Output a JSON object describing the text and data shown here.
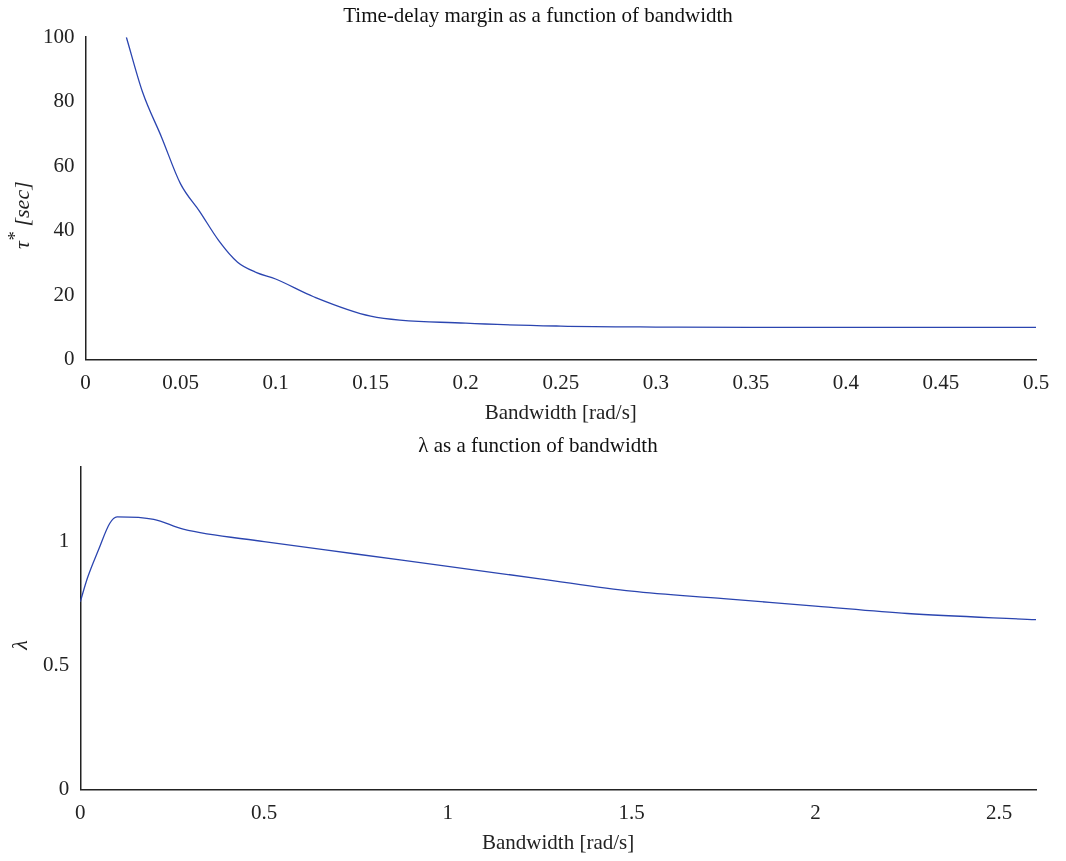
{
  "chart_data": [
    {
      "type": "line",
      "title": "Time-delay margin as a function of bandwidth",
      "xlabel": "Bandwidth [rad/s]",
      "ylabel": "τ$^{*}$ [sec]",
      "xlim": [
        0,
        0.5
      ],
      "xticks": [
        0,
        0.05,
        0.1,
        0.15,
        0.2,
        0.25,
        0.3,
        0.35,
        0.4,
        0.45,
        0.5
      ],
      "ylim": [
        0,
        100
      ],
      "yticks": [
        0,
        20,
        40,
        60,
        80,
        100
      ],
      "grid": false,
      "legend": false,
      "series": [
        {
          "color": "#2b45b0",
          "x": [
            0.0215,
            0.03,
            0.04,
            0.05,
            0.06,
            0.07,
            0.08,
            0.09,
            0.1,
            0.12,
            0.15,
            0.2,
            0.25,
            0.3,
            0.35,
            0.4,
            0.5
          ],
          "values": [
            100,
            83,
            69,
            54.5,
            46,
            37,
            30.2,
            27,
            25,
            19.5,
            13.5,
            11.3,
            10.4,
            10.1,
            10,
            10,
            10
          ]
        }
      ]
    },
    {
      "type": "line",
      "title": "λ as a function of bandwidth",
      "xlabel": "Bandwidth [rad/s]",
      "ylabel": "λ",
      "xlim": [
        0,
        2.6
      ],
      "xticks": [
        0,
        0.5,
        1,
        1.5,
        2,
        2.5
      ],
      "ylim": [
        0,
        1.3
      ],
      "yticks": [
        0,
        0.5,
        1
      ],
      "grid": false,
      "legend": false,
      "series": [
        {
          "color": "#2b45b0",
          "x": [
            0,
            0.02,
            0.05,
            0.08,
            0.1,
            0.2,
            0.28,
            0.5,
            0.75,
            1,
            1.25,
            1.5,
            1.75,
            2,
            2.25,
            2.6
          ],
          "values": [
            0.757,
            0.855,
            0.968,
            1.073,
            1.1,
            1.09,
            1.05,
            1.0,
            0.95,
            0.9,
            0.85,
            0.8,
            0.77,
            0.74,
            0.71,
            0.685
          ]
        }
      ]
    }
  ]
}
